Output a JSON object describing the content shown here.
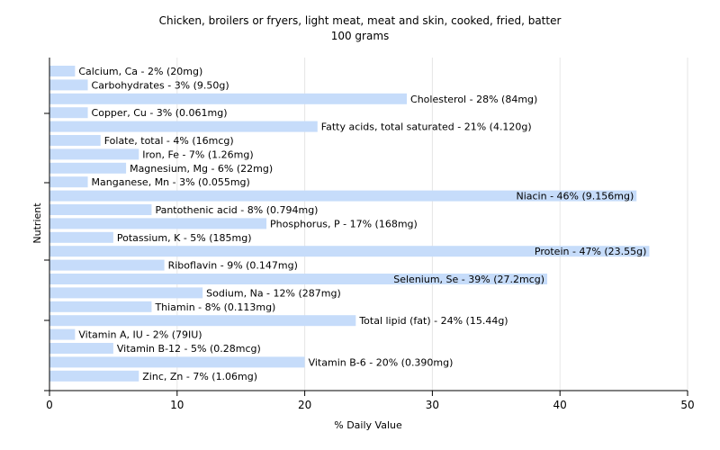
{
  "chart_data": {
    "type": "bar",
    "orientation": "horizontal",
    "title": "Chicken, broilers or fryers, light meat, meat and skin, cooked, fried, batter",
    "subtitle": "100 grams",
    "xlabel": "% Daily Value",
    "ylabel": "Nutrient",
    "xlim": [
      0,
      50
    ],
    "xticks": [
      0,
      10,
      20,
      30,
      40,
      50
    ],
    "grid": true,
    "bar_color": "#c6dcfa",
    "categories": [
      "Calcium, Ca",
      "Carbohydrates",
      "Cholesterol",
      "Copper, Cu",
      "Fatty acids, total saturated",
      "Folate, total",
      "Iron, Fe",
      "Magnesium, Mg",
      "Manganese, Mn",
      "Niacin",
      "Pantothenic acid",
      "Phosphorus, P",
      "Potassium, K",
      "Protein",
      "Riboflavin",
      "Selenium, Se",
      "Sodium, Na",
      "Thiamin",
      "Total lipid (fat)",
      "Vitamin A, IU",
      "Vitamin B-12",
      "Vitamin B-6",
      "Zinc, Zn"
    ],
    "values": [
      2,
      3,
      28,
      3,
      21,
      4,
      7,
      6,
      3,
      46,
      8,
      17,
      5,
      47,
      9,
      39,
      12,
      8,
      24,
      2,
      5,
      20,
      7
    ],
    "labels": [
      "Calcium, Ca - 2% (20mg)",
      "Carbohydrates - 3% (9.50g)",
      "Cholesterol - 28% (84mg)",
      "Copper, Cu - 3% (0.061mg)",
      "Fatty acids, total saturated - 21% (4.120g)",
      "Folate, total - 4% (16mcg)",
      "Iron, Fe - 7% (1.26mg)",
      "Magnesium, Mg - 6% (22mg)",
      "Manganese, Mn - 3% (0.055mg)",
      "Niacin - 46% (9.156mg)",
      "Pantothenic acid - 8% (0.794mg)",
      "Phosphorus, P - 17% (168mg)",
      "Potassium, K - 5% (185mg)",
      "Protein - 47% (23.55g)",
      "Riboflavin - 9% (0.147mg)",
      "Selenium, Se - 39% (27.2mcg)",
      "Sodium, Na - 12% (287mg)",
      "Thiamin - 8% (0.113mg)",
      "Total lipid (fat) - 24% (15.44g)",
      "Vitamin A, IU - 2% (79IU)",
      "Vitamin B-12 - 5% (0.28mcg)",
      "Vitamin B-6 - 20% (0.390mg)",
      "Zinc, Zn - 7% (1.06mg)"
    ]
  }
}
